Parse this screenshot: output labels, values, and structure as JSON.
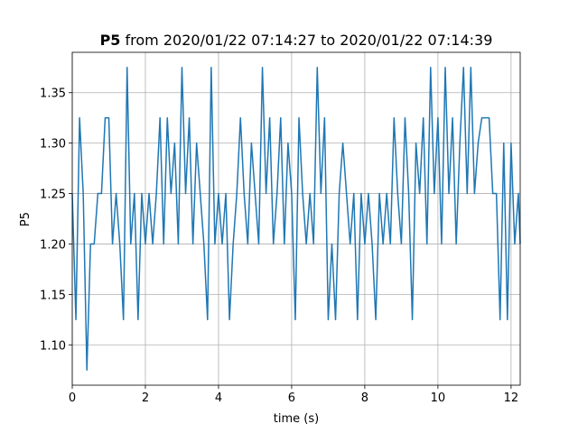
{
  "chart_data": {
    "type": "line",
    "title_name": "P5",
    "title": "from 2020/01/22 07:14:27 to 2020/01/22 07:14:39",
    "x_label": "time (s)",
    "y_label": "P5",
    "color": "#1f77b4",
    "grid": true,
    "xlim": [
      0,
      12.25
    ],
    "ylim": [
      1.06,
      1.39
    ],
    "xticks": [
      0,
      2,
      4,
      6,
      8,
      10,
      12
    ],
    "yticks": [
      {
        "value": 1.1,
        "label": "1.10"
      },
      1.15,
      {
        "value": 1.2,
        "label": "1.20"
      },
      1.25,
      {
        "value": 1.3,
        "label": "1.30"
      },
      1.35
    ],
    "x": [
      0,
      0.1,
      0.2,
      0.3,
      0.4,
      0.5,
      0.6,
      0.7,
      0.8,
      0.9,
      1,
      1.1,
      1.2,
      1.3,
      1.4,
      1.5,
      1.6,
      1.7,
      1.8,
      1.9,
      2,
      2.1,
      2.2,
      2.3,
      2.4,
      2.5,
      2.6,
      2.7,
      2.8,
      2.9,
      3,
      3.1,
      3.2,
      3.3,
      3.4,
      3.5,
      3.6,
      3.7,
      3.8,
      3.9,
      4,
      4.1,
      4.2,
      4.3,
      4.4,
      4.5,
      4.6,
      4.7,
      4.8,
      4.9,
      5,
      5.1,
      5.2,
      5.3,
      5.4,
      5.5,
      5.6,
      5.7,
      5.8,
      5.9,
      6,
      6.1,
      6.2,
      6.3,
      6.4,
      6.5,
      6.6,
      6.7,
      6.8,
      6.9,
      7,
      7.1,
      7.2,
      7.3,
      7.4,
      7.5,
      7.6,
      7.7,
      7.8,
      7.9,
      8,
      8.1,
      8.2,
      8.3,
      8.4,
      8.5,
      8.6,
      8.7,
      8.8,
      8.9,
      9,
      9.1,
      9.2,
      9.3,
      9.4,
      9.5,
      9.6,
      9.7,
      9.8,
      9.9,
      10,
      10.1,
      10.2,
      10.3,
      10.4,
      10.5,
      10.6,
      10.7,
      10.8,
      10.9,
      11,
      11.1,
      11.2,
      11.3,
      11.4,
      11.5,
      11.6,
      11.7,
      11.8,
      11.9,
      12,
      12.1,
      12.2,
      12.25
    ],
    "values": [
      1.25,
      1.125,
      1.325,
      1.25,
      1.075,
      1.2,
      1.2,
      1.25,
      1.25,
      1.325,
      1.325,
      1.2,
      1.25,
      1.2,
      1.125,
      1.375,
      1.2,
      1.25,
      1.125,
      1.25,
      1.2,
      1.25,
      1.2,
      1.25,
      1.325,
      1.2,
      1.325,
      1.25,
      1.3,
      1.2,
      1.375,
      1.25,
      1.325,
      1.2,
      1.3,
      1.25,
      1.2,
      1.125,
      1.375,
      1.2,
      1.25,
      1.2,
      1.25,
      1.125,
      1.2,
      1.25,
      1.325,
      1.25,
      1.2,
      1.3,
      1.25,
      1.2,
      1.375,
      1.25,
      1.325,
      1.2,
      1.25,
      1.325,
      1.2,
      1.3,
      1.25,
      1.125,
      1.325,
      1.25,
      1.2,
      1.25,
      1.2,
      1.375,
      1.25,
      1.325,
      1.125,
      1.2,
      1.125,
      1.25,
      1.3,
      1.25,
      1.2,
      1.25,
      1.125,
      1.25,
      1.2,
      1.25,
      1.2,
      1.125,
      1.25,
      1.2,
      1.25,
      1.2,
      1.325,
      1.25,
      1.2,
      1.325,
      1.25,
      1.125,
      1.3,
      1.25,
      1.325,
      1.2,
      1.375,
      1.25,
      1.325,
      1.2,
      1.375,
      1.25,
      1.325,
      1.2,
      1.3,
      1.375,
      1.25,
      1.375,
      1.25,
      1.3,
      1.325,
      1.325,
      1.325,
      1.25,
      1.25,
      1.125,
      1.3,
      1.125,
      1.3,
      1.2,
      1.25,
      1.2
    ]
  }
}
